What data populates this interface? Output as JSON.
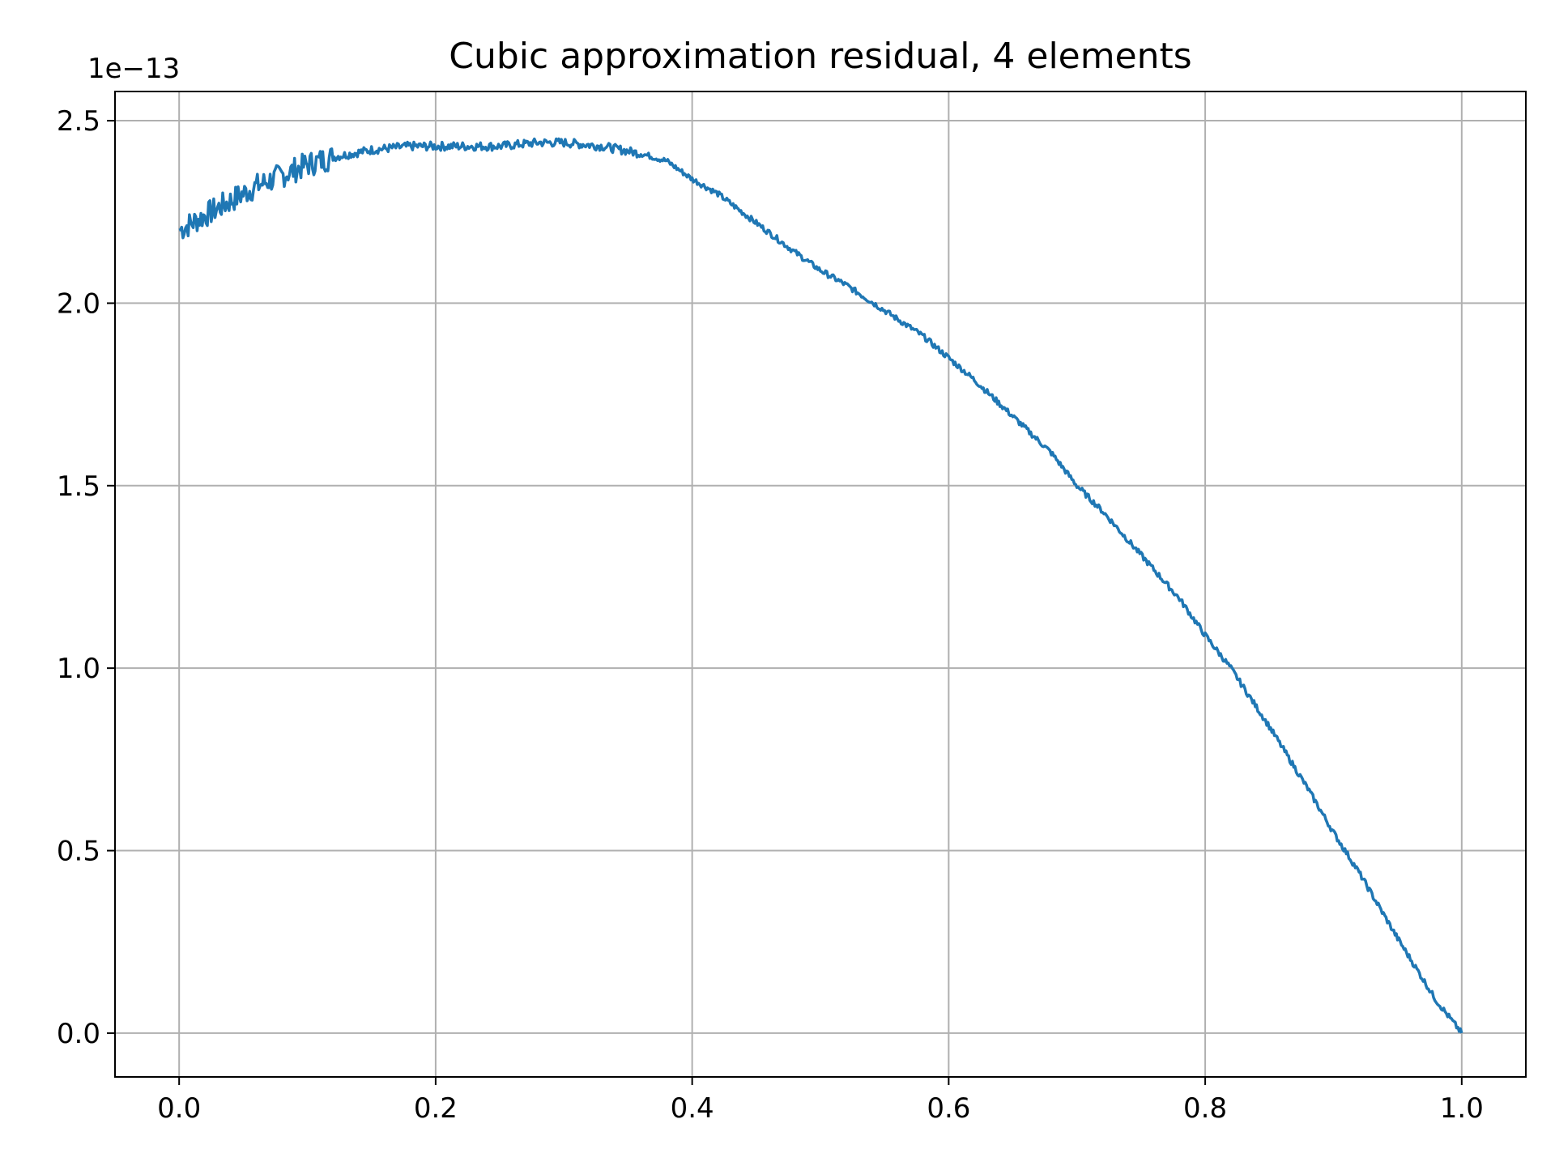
{
  "chart_data": {
    "type": "line",
    "title": "Cubic approximation residual, 4 elements",
    "xlabel": "",
    "ylabel": "",
    "y_offset_label": "1e−13",
    "xlim": [
      -0.05,
      1.05
    ],
    "ylim": [
      -0.12,
      2.58
    ],
    "y_scale": 1e-13,
    "grid": true,
    "line_color": "#1f77b4",
    "x_ticks": [
      0.0,
      0.2,
      0.4,
      0.6,
      0.8,
      1.0
    ],
    "x_tick_labels": [
      "0.0",
      "0.2",
      "0.4",
      "0.6",
      "0.8",
      "1.0"
    ],
    "y_ticks": [
      0.0,
      0.5,
      1.0,
      1.5,
      2.0,
      2.5
    ],
    "y_tick_labels": [
      "0.0",
      "0.5",
      "1.0",
      "1.5",
      "2.0",
      "2.5"
    ],
    "series": [
      {
        "x": [
          0.0,
          0.02,
          0.04,
          0.06,
          0.08,
          0.1,
          0.12,
          0.15,
          0.18,
          0.2,
          0.22,
          0.25,
          0.28,
          0.3,
          0.33,
          0.36,
          0.38,
          0.4,
          0.42,
          0.45,
          0.48,
          0.5,
          0.52,
          0.55,
          0.58,
          0.6,
          0.62,
          0.65,
          0.68,
          0.7,
          0.72,
          0.75,
          0.78,
          0.8,
          0.82,
          0.85,
          0.88,
          0.9,
          0.92,
          0.95,
          0.98,
          1.0
        ],
        "y": [
          2.2,
          2.24,
          2.28,
          2.32,
          2.35,
          2.38,
          2.4,
          2.42,
          2.43,
          2.43,
          2.43,
          2.43,
          2.44,
          2.44,
          2.43,
          2.41,
          2.39,
          2.34,
          2.3,
          2.22,
          2.14,
          2.09,
          2.05,
          1.98,
          1.91,
          1.85,
          1.79,
          1.69,
          1.59,
          1.5,
          1.43,
          1.31,
          1.19,
          1.09,
          1.0,
          0.84,
          0.67,
          0.55,
          0.44,
          0.26,
          0.09,
          0.0
        ]
      }
    ]
  }
}
